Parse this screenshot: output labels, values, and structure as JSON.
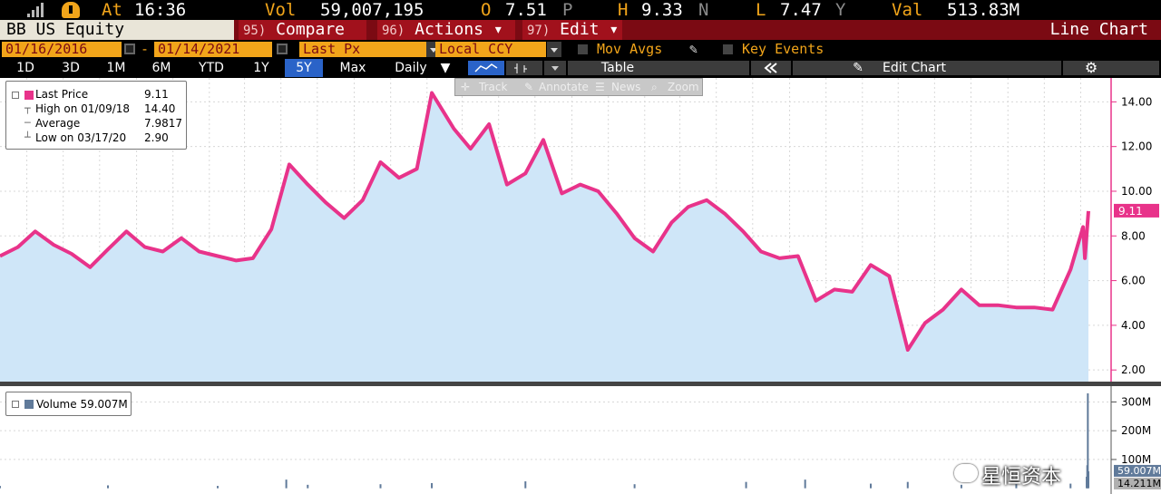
{
  "topbar": {
    "at_label": "At",
    "at_value": "16:36",
    "vol_label": "Vol",
    "vol_value": "59,007,195",
    "open_label": "O",
    "open_value": "7.51",
    "open_flag": "P",
    "high_label": "H",
    "high_value": "9.33",
    "high_flag": "N",
    "low_label": "L",
    "low_value": "7.47",
    "low_flag": "Y",
    "val_label": "Val",
    "val_value": "513.83M"
  },
  "command_bar": {
    "ticker": "BB US Equity",
    "compare_num": "95)",
    "compare_label": "Compare",
    "actions_num": "96)",
    "actions_label": "Actions",
    "edit_num": "97)",
    "edit_label": "Edit",
    "view_title": "Line Chart"
  },
  "date_row": {
    "start_date": "01/16/2016",
    "dash": "-",
    "end_date": "01/14/2021",
    "field": "Last Px",
    "currency": "Local CCY",
    "mov_avgs": "Mov Avgs",
    "key_events": "Key Events"
  },
  "period_row": {
    "periods": [
      "1D",
      "3D",
      "1M",
      "6M",
      "YTD",
      "1Y",
      "5Y",
      "Max"
    ],
    "active": "5Y",
    "frequency": "Daily",
    "table": "Table",
    "edit_chart": "Edit Chart"
  },
  "annotate_toolbar": {
    "track": "Track",
    "annotate": "Annotate",
    "news": "News",
    "zoom": "Zoom"
  },
  "legend": {
    "last_price_label": "Last Price",
    "last_price_value": "9.11",
    "high_label": "High on 01/09/18",
    "high_value": "14.40",
    "average_label": "Average",
    "average_value": "7.9817",
    "low_label": "Low on 03/17/20",
    "low_value": "2.90"
  },
  "volume_legend": {
    "label": "Volume 59.007M"
  },
  "watermark": "星恒资本",
  "colors": {
    "price_line": "#e8338a",
    "price_fill": "#cfe6f8",
    "volume_bar": "#607a9a",
    "command_bar": "#7b0a13",
    "accent_orange": "#f2a51a",
    "active_period": "#2a63c8"
  },
  "chart_data": [
    {
      "type": "area",
      "series": [
        {
          "name": "Last Price",
          "x": [
            "2016-01-16",
            "2016-02-15",
            "2016-03-15",
            "2016-04-15",
            "2016-05-15",
            "2016-06-15",
            "2016-07-15",
            "2016-08-15",
            "2016-09-15",
            "2016-10-15",
            "2016-11-15",
            "2016-12-15",
            "2017-01-15",
            "2017-02-15",
            "2017-03-15",
            "2017-04-15",
            "2017-05-15",
            "2017-06-15",
            "2017-07-15",
            "2017-08-15",
            "2017-09-15",
            "2017-10-15",
            "2017-11-15",
            "2017-12-15",
            "2018-01-09",
            "2018-02-15",
            "2018-03-15",
            "2018-04-15",
            "2018-05-15",
            "2018-06-15",
            "2018-07-15",
            "2018-08-15",
            "2018-09-15",
            "2018-10-15",
            "2018-11-15",
            "2018-12-15",
            "2019-01-15",
            "2019-02-15",
            "2019-03-15",
            "2019-04-15",
            "2019-05-15",
            "2019-06-15",
            "2019-07-15",
            "2019-08-15",
            "2019-09-15",
            "2019-10-15",
            "2019-11-15",
            "2019-12-15",
            "2020-01-15",
            "2020-02-15",
            "2020-03-17",
            "2020-04-15",
            "2020-05-15",
            "2020-06-15",
            "2020-07-15",
            "2020-08-15",
            "2020-09-15",
            "2020-10-15",
            "2020-11-15",
            "2020-12-15",
            "2021-01-05",
            "2021-01-08",
            "2021-01-14"
          ],
          "values": [
            7.1,
            7.5,
            8.2,
            7.6,
            7.2,
            6.6,
            7.4,
            8.2,
            7.5,
            7.3,
            7.9,
            7.3,
            7.1,
            6.9,
            7.0,
            8.3,
            11.2,
            10.3,
            9.5,
            8.8,
            9.6,
            11.3,
            10.6,
            11.0,
            14.4,
            12.8,
            11.9,
            13.0,
            10.3,
            10.8,
            12.3,
            9.9,
            10.3,
            10.0,
            9.0,
            7.9,
            7.3,
            8.6,
            9.3,
            9.6,
            9.0,
            8.2,
            7.3,
            7.0,
            7.1,
            5.1,
            5.6,
            5.5,
            6.7,
            6.2,
            2.9,
            4.1,
            4.7,
            5.6,
            4.9,
            4.9,
            4.8,
            4.8,
            4.7,
            6.5,
            8.4,
            7.0,
            9.11
          ]
        }
      ],
      "ylim": [
        2,
        15
      ],
      "yticks": [
        "2.00",
        "4.00",
        "6.00",
        "8.00",
        "10.00",
        "12.00",
        "14.00"
      ],
      "last_value_label": "9.11",
      "grid": true
    },
    {
      "type": "bar",
      "series": [
        {
          "name": "Volume",
          "x": [
            "2016-01-16",
            "2016-07-15",
            "2017-01-15",
            "2017-05-10",
            "2017-06-15",
            "2017-10-15",
            "2018-01-09",
            "2018-06-15",
            "2018-12-15",
            "2019-06-20",
            "2019-09-27",
            "2020-01-15",
            "2020-03-17",
            "2020-06-15",
            "2020-09-15",
            "2020-12-15",
            "2021-01-11",
            "2021-01-12",
            "2021-01-13",
            "2021-01-14"
          ],
          "values": [
            8,
            10,
            8,
            30,
            12,
            14,
            18,
            24,
            14,
            22,
            30,
            16,
            22,
            12,
            14,
            16,
            40,
            80,
            330,
            59.007
          ]
        }
      ],
      "ylim": [
        0,
        350
      ],
      "yticks": [
        "100M",
        "200M",
        "300M"
      ],
      "last_value_labels": [
        "59.007M",
        "14.211M"
      ],
      "grid": true
    }
  ]
}
